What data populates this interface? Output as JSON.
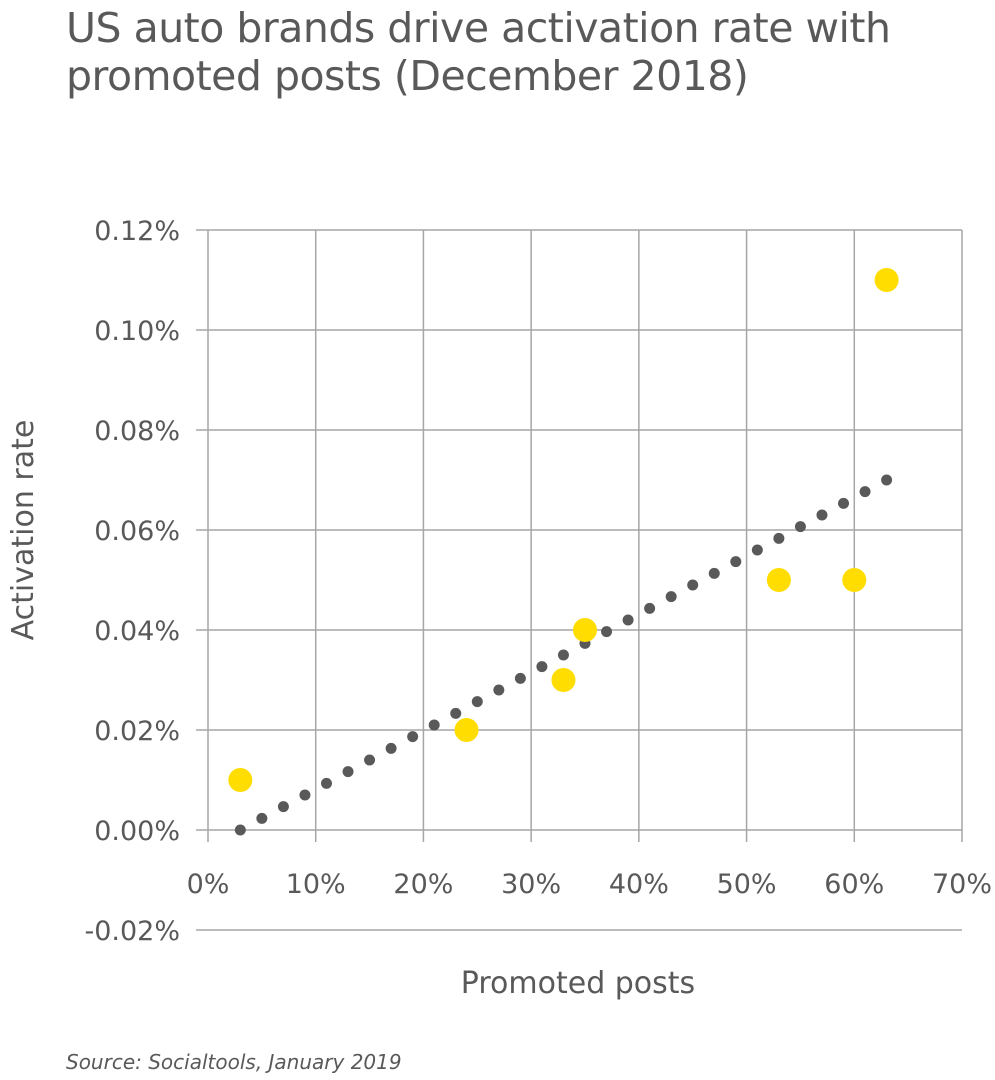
{
  "title": "US auto brands drive activation rate with promoted posts (December 2018)",
  "source": "Source: Socialtools, January 2019",
  "colors": {
    "points": "#FFDD00",
    "trendline": "#595959",
    "grid": "#A6A6A6",
    "text": "#595959"
  },
  "chart_data": {
    "type": "scatter",
    "title": "US auto brands drive activation rate with promoted posts (December 2018)",
    "xlabel": "Promoted posts",
    "ylabel": "Activation rate",
    "xlim": [
      0,
      70
    ],
    "ylim": [
      -0.02,
      0.12
    ],
    "x_ticks": [
      0,
      10,
      20,
      30,
      40,
      50,
      60,
      70
    ],
    "x_tick_labels": [
      "0%",
      "10%",
      "20%",
      "30%",
      "40%",
      "50%",
      "60%",
      "70%"
    ],
    "y_ticks": [
      -0.02,
      0.0,
      0.02,
      0.04,
      0.06,
      0.08,
      0.1,
      0.12
    ],
    "y_tick_labels": [
      "-0.02%",
      "0.00%",
      "0.02%",
      "0.04%",
      "0.06%",
      "0.08%",
      "0.10%",
      "0.12%"
    ],
    "grid": true,
    "legend": "none",
    "points": [
      {
        "x": 3,
        "y": 0.01
      },
      {
        "x": 24,
        "y": 0.02
      },
      {
        "x": 33,
        "y": 0.03
      },
      {
        "x": 35,
        "y": 0.04
      },
      {
        "x": 53,
        "y": 0.05
      },
      {
        "x": 60,
        "y": 0.05
      },
      {
        "x": 63,
        "y": 0.11
      }
    ],
    "trendline": {
      "style": "dotted",
      "x_start": 3,
      "x_end": 63,
      "y_start": 0.0,
      "y_end": 0.07
    }
  }
}
